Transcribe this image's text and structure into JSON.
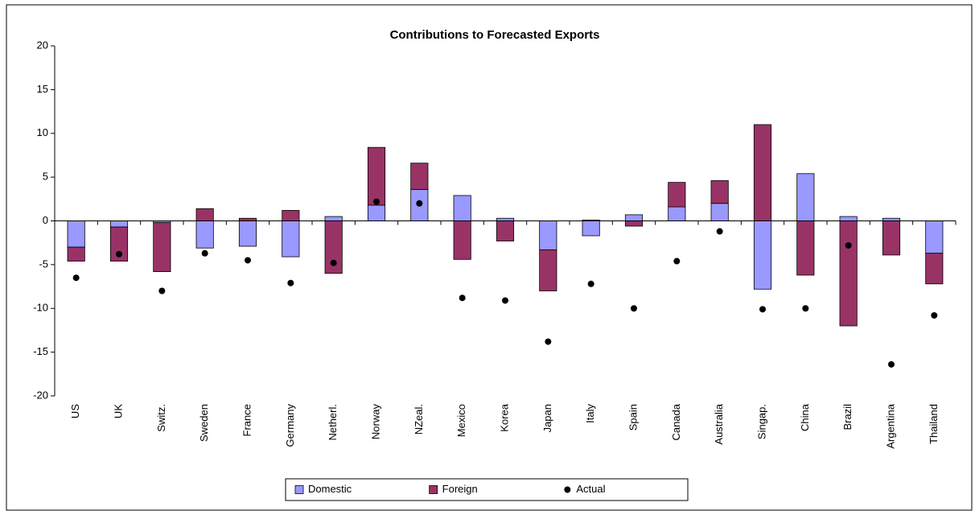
{
  "chart_data": {
    "type": "bar",
    "stacked": true,
    "title": "Contributions to Forecasted Exports",
    "categories": [
      "US",
      "UK",
      "Switz.",
      "Sweden",
      "France",
      "Germany",
      "Netherl.",
      "Norway",
      "NZeal.",
      "Mexico",
      "Korea",
      "Japan",
      "Italy",
      "Spain",
      "Canada",
      "Australia",
      "Singap.",
      "China",
      "Brazil",
      "Argentina",
      "Thailand"
    ],
    "series": [
      {
        "name": "Domestic",
        "color": "#9999ff",
        "values": [
          -3.0,
          -0.7,
          -0.2,
          -3.1,
          -2.9,
          -4.1,
          0.5,
          1.8,
          3.6,
          2.9,
          0.3,
          -3.3,
          -1.7,
          0.7,
          1.6,
          2.0,
          -7.8,
          5.4,
          0.5,
          0.3,
          -3.7
        ]
      },
      {
        "name": "Foreign",
        "color": "#993366",
        "values": [
          -1.6,
          -3.9,
          -5.6,
          1.4,
          0.3,
          1.2,
          -6.0,
          6.6,
          3.0,
          -4.4,
          -2.3,
          -4.7,
          0.1,
          -0.6,
          2.8,
          2.6,
          11.0,
          -6.2,
          -12.0,
          -3.9,
          -3.5
        ]
      },
      {
        "name": "Actual",
        "type": "scatter",
        "color": "#000000",
        "values": [
          -6.5,
          -3.8,
          -8.0,
          -3.7,
          -4.5,
          -7.1,
          -4.8,
          2.2,
          2.0,
          -8.8,
          -9.1,
          -13.8,
          -7.2,
          -10.0,
          -4.6,
          -1.2,
          -10.1,
          -10.0,
          -2.8,
          -16.4,
          -10.8
        ]
      }
    ],
    "ylim": [
      -20,
      20
    ],
    "yticks": [
      -20,
      -15,
      -10,
      -5,
      0,
      5,
      10,
      15,
      20
    ],
    "legend": "bottom"
  }
}
